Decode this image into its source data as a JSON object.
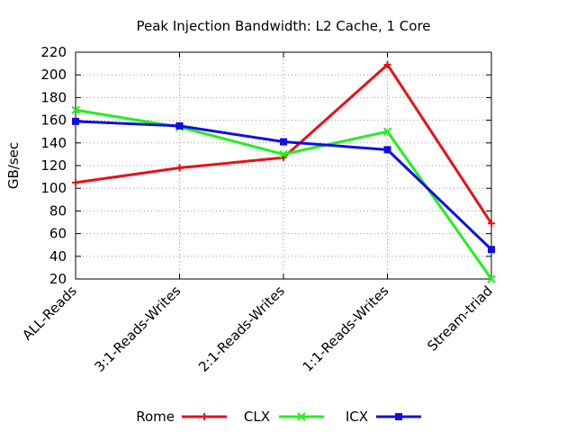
{
  "chart_data": {
    "type": "line",
    "title": "Peak Injection Bandwidth: L2 Cache, 1 Core",
    "xlabel": "",
    "ylabel": "GB/sec",
    "ylim": [
      20,
      220
    ],
    "yticks": [
      20,
      40,
      60,
      80,
      100,
      120,
      140,
      160,
      180,
      200,
      220
    ],
    "categories": [
      "ALL-Reads",
      "3:1-Reads-Writes",
      "2:1-Reads-Writes",
      "1:1-Reads-Writes",
      "Stream-triad"
    ],
    "grid": true,
    "legend_position": "bottom-center",
    "series": [
      {
        "name": "Rome",
        "color": "#e8101a",
        "marker": "plus",
        "values": [
          105,
          118,
          127,
          209,
          69
        ]
      },
      {
        "name": "CLX",
        "color": "#22f01c",
        "marker": "x",
        "values": [
          169,
          154,
          130,
          150,
          20
        ]
      },
      {
        "name": "ICX",
        "color": "#1010e0",
        "marker": "square",
        "values": [
          159,
          155,
          141,
          134,
          46
        ]
      }
    ]
  }
}
